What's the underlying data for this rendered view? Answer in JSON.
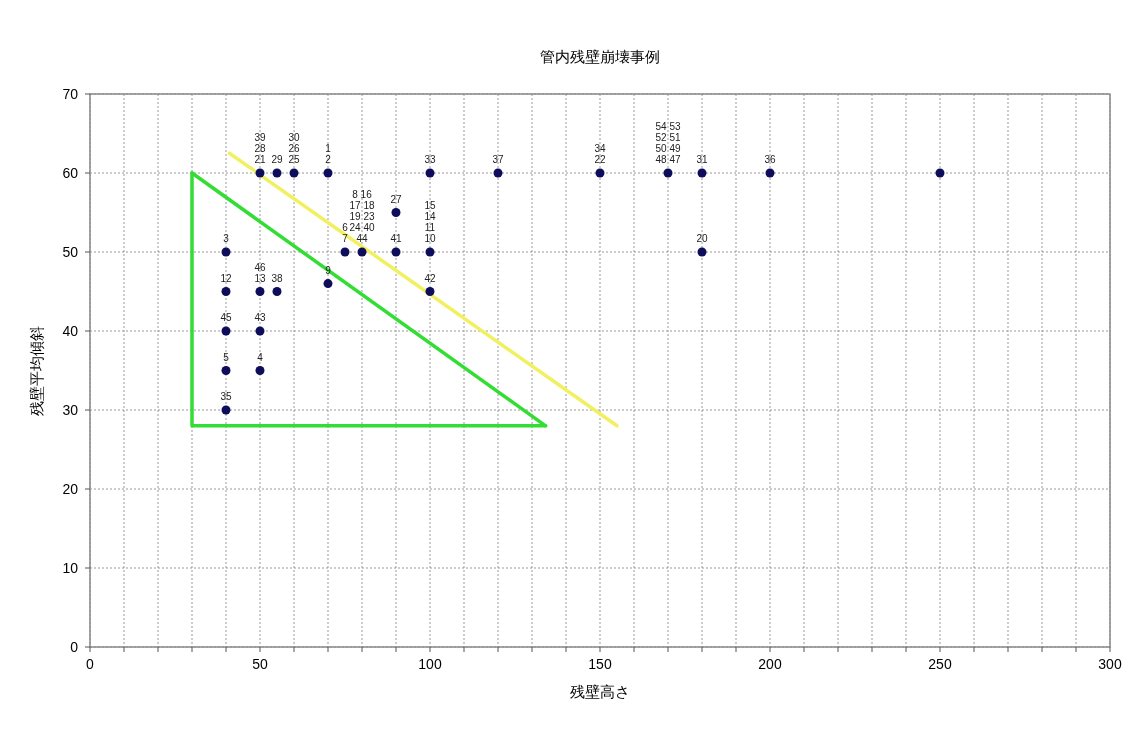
{
  "chart_data": {
    "type": "scatter",
    "title": "管内残壁崩壊事例",
    "xlabel": "残壁高さ",
    "ylabel": "残壁平均傾斜",
    "xlim": [
      0,
      300
    ],
    "ylim": [
      0,
      70
    ],
    "xticks": [
      0,
      {
        "value": 10,
        "label": null
      },
      {
        "value": 20,
        "label": null
      },
      {
        "value": 30,
        "label": null
      },
      {
        "value": 40,
        "label": null
      },
      50,
      {
        "value": 60,
        "label": null
      },
      {
        "value": 70,
        "label": null
      },
      {
        "value": 80,
        "label": null
      },
      {
        "value": 90,
        "label": null
      },
      100,
      {
        "value": 110,
        "label": null
      },
      {
        "value": 120,
        "label": null
      },
      {
        "value": 130,
        "label": null
      },
      {
        "value": 140,
        "label": null
      },
      150,
      {
        "value": 160,
        "label": null
      },
      {
        "value": 170,
        "label": null
      },
      {
        "value": 180,
        "label": null
      },
      {
        "value": 190,
        "label": null
      },
      200,
      {
        "value": 210,
        "label": null
      },
      {
        "value": 220,
        "label": null
      },
      {
        "value": 230,
        "label": null
      },
      {
        "value": 240,
        "label": null
      },
      250,
      {
        "value": 260,
        "label": null
      },
      {
        "value": 270,
        "label": null
      },
      {
        "value": 280,
        "label": null
      },
      {
        "value": 290,
        "label": null
      },
      300
    ],
    "yticks": [
      0,
      10,
      20,
      30,
      40,
      50,
      60,
      70
    ],
    "grid": true,
    "marker": "circle",
    "series": [
      {
        "color": "#0d0d5c",
        "x": [
          50,
          55,
          60,
          70,
          100,
          120,
          150,
          170,
          180,
          200,
          250,
          90,
          40,
          75,
          80,
          90,
          100,
          100,
          180,
          70,
          40,
          50,
          55,
          40,
          50,
          40,
          50,
          40
        ],
        "values": [
          60,
          60,
          60,
          60,
          60,
          60,
          60,
          60,
          60,
          60,
          60,
          55,
          50,
          50,
          50,
          50,
          50,
          45,
          50,
          46,
          45,
          45,
          45,
          40,
          40,
          35,
          35,
          30
        ]
      },
      {
        "type": "line",
        "color": "#33dd33",
        "line_style": "solid",
        "marker": "none",
        "x": [
          30,
          30,
          134
        ],
        "values": [
          60,
          28,
          28
        ]
      },
      {
        "type": "line",
        "color": "#33dd33",
        "line_style": "solid",
        "marker": "none",
        "x": [
          30,
          134
        ],
        "values": [
          60,
          28
        ]
      },
      {
        "type": "line",
        "color": "#f0f060",
        "line_style": "solid",
        "marker": "none",
        "x": [
          41,
          155
        ],
        "values": [
          62.5,
          28
        ]
      }
    ],
    "annotations": [
      {
        "text": "39\n28\n21",
        "x": 50,
        "y": 60
      },
      {
        "text": "29",
        "x": 55,
        "y": 60
      },
      {
        "text": "30\n26\n25",
        "x": 60,
        "y": 60
      },
      {
        "text": "1\n2",
        "x": 70,
        "y": 60
      },
      {
        "text": "33",
        "x": 100,
        "y": 60
      },
      {
        "text": "37",
        "x": 120,
        "y": 60
      },
      {
        "text": "34\n22",
        "x": 150,
        "y": 60
      },
      {
        "text": "54 53\n52 51\n50 49\n48 47",
        "x": 170,
        "y": 60
      },
      {
        "text": "31",
        "x": 180,
        "y": 60
      },
      {
        "text": "36",
        "x": 200,
        "y": 60
      },
      {
        "text": "27",
        "x": 90,
        "y": 55
      },
      {
        "text": "3",
        "x": 40,
        "y": 50
      },
      {
        "text": "6\n7",
        "x": 75,
        "y": 50
      },
      {
        "text": "8 16\n17 18\n19 23\n24 40\n44",
        "x": 80,
        "y": 50
      },
      {
        "text": "41",
        "x": 90,
        "y": 50
      },
      {
        "text": "15\n14\n11\n10",
        "x": 100,
        "y": 50
      },
      {
        "text": "42",
        "x": 100,
        "y": 45
      },
      {
        "text": "20",
        "x": 180,
        "y": 50
      },
      {
        "text": "9",
        "x": 70,
        "y": 46
      },
      {
        "text": "12",
        "x": 40,
        "y": 45
      },
      {
        "text": "46\n13",
        "x": 50,
        "y": 45
      },
      {
        "text": "38",
        "x": 55,
        "y": 45
      },
      {
        "text": "45",
        "x": 40,
        "y": 40
      },
      {
        "text": "43",
        "x": 50,
        "y": 40
      },
      {
        "text": "5",
        "x": 40,
        "y": 35
      },
      {
        "text": "4",
        "x": 50,
        "y": 35
      },
      {
        "text": "35",
        "x": 40,
        "y": 30
      }
    ]
  }
}
